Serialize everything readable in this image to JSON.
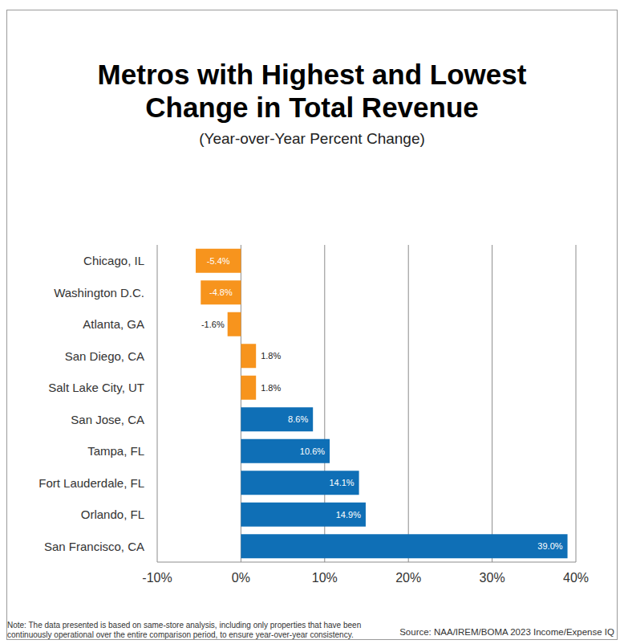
{
  "chart_data": {
    "type": "bar",
    "orientation": "horizontal",
    "title": "Metros with Highest and Lowest Change in Total Revenue",
    "subtitle": "(Year-over-Year Percent Change)",
    "note": "Note: The data presented is based on same-store analysis, including only properties that have been continuously operational over the entire comparison period, to ensure year-over-year consistency.",
    "source": "Source:  NAA/IREM/BOMA 2023 Income/Expense IQ",
    "categories": [
      "Chicago, IL",
      "Washington D.C.",
      "Atlanta, GA",
      "San Diego, CA",
      "Salt Lake City, UT",
      "San Jose, CA",
      "Tampa, FL",
      "Fort Lauderdale, FL",
      "Orlando, FL",
      "San Francisco, CA"
    ],
    "values": [
      -5.4,
      -4.8,
      -1.6,
      1.8,
      1.8,
      8.6,
      10.6,
      14.1,
      14.9,
      39.0
    ],
    "value_labels": [
      "-5.4%",
      "-4.8%",
      "-1.6%",
      "1.8%",
      "1.8%",
      "8.6%",
      "10.6%",
      "14.1%",
      "14.9%",
      "39.0%"
    ],
    "colors": [
      "#f7941d",
      "#f7941d",
      "#f7941d",
      "#f7941d",
      "#f7941d",
      "#0f6fb6",
      "#0f6fb6",
      "#0f6fb6",
      "#0f6fb6",
      "#0f6fb6"
    ],
    "xlim": [
      -10,
      40
    ],
    "xticks": [
      {
        "value": -10,
        "label": "-10%"
      },
      {
        "value": 0,
        "label": "0%"
      },
      {
        "value": 10,
        "label": "10%"
      },
      {
        "value": 20,
        "label": "20%"
      },
      {
        "value": 30,
        "label": "30%"
      },
      {
        "value": 40,
        "label": "40%"
      }
    ],
    "grid": true,
    "data_labels": true
  }
}
